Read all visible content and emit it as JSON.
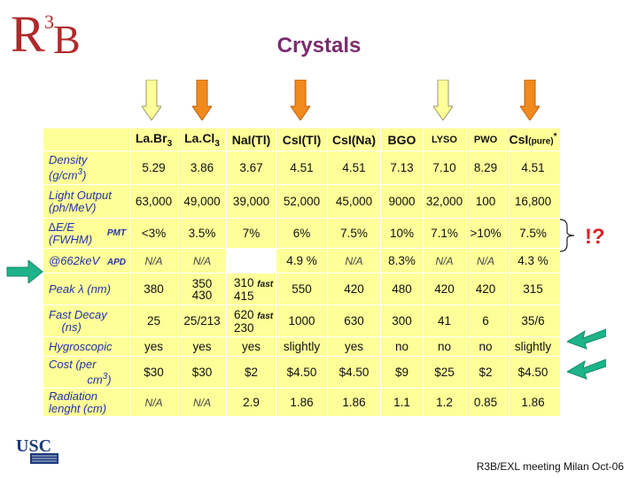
{
  "logo": {
    "r": "R",
    "three": "3",
    "b": "B"
  },
  "title": "Crystals",
  "headers": [
    "",
    "La.Br3",
    "La.Cl3",
    "NaI(Tl)",
    "CsI(Tl)",
    "CsI(Na)",
    "BGO",
    "LYSO",
    "PWO",
    "CsI (pure)"
  ],
  "header_parts": {
    "labr": "La.Br",
    "labr_sub": "3",
    "lacl": "La.Cl",
    "lacl_sub": "3",
    "csi_pure": "CsI",
    "csi_pure_note": "(pure)",
    "csi_star": "*"
  },
  "rows": {
    "density": {
      "label": "Density (g/cm3)",
      "label_l1": "Density",
      "label_l2": "(g/cm",
      "label_sup": "3",
      "label_end": ")",
      "values": [
        "5.29",
        "3.86",
        "3.67",
        "4.51",
        "4.51",
        "7.13",
        "7.10",
        "8.29",
        "4.51"
      ]
    },
    "light": {
      "label_l1": "Light Output",
      "label_l2": "(ph/MeV)",
      "values": [
        "63,000",
        "49,000",
        "39,000",
        "52,000",
        "45,000",
        "9000",
        "32,000",
        "100",
        "16,800"
      ]
    },
    "res_pmt": {
      "label_l1": "∆E/E",
      "label_l2": "(FWHM)",
      "tag": "PMT",
      "values": [
        "<3%",
        "3.5%",
        "7%",
        "6%",
        "7.5%",
        "10%",
        "7.1%",
        ">10%",
        "7.5%"
      ]
    },
    "res_apd": {
      "label": "@662keV",
      "tag": "APD",
      "values": [
        "N/A",
        "N/A",
        "",
        "4.9 %",
        "N/A",
        "8.3%",
        "N/A",
        "N/A",
        "4.3 %"
      ]
    },
    "peak": {
      "label": "Peak λ (nm)",
      "values": [
        "380",
        "350 430",
        "310 415",
        "550",
        "420",
        "480",
        "420",
        "420",
        "315"
      ],
      "lacl_l1": "350",
      "lacl_l2": "430",
      "nai_l1": "310",
      "nai_l2": "415",
      "fast": "fast"
    },
    "decay": {
      "label_l1": "Fast Decay",
      "label_l2": "(ns)",
      "values": [
        "25",
        "25/213",
        "620 230",
        "1000",
        "630",
        "300",
        "41",
        "6",
        "35/6"
      ],
      "nai_l1": "620",
      "nai_l2": "230",
      "fast": "fast"
    },
    "hygro": {
      "label": "Hygroscopic",
      "values": [
        "yes",
        "yes",
        "yes",
        "slightly",
        "yes",
        "no",
        "no",
        "no",
        "slightly"
      ]
    },
    "cost": {
      "label_l1": "Cost (per",
      "label_l2": "cm3)",
      "label_l2a": "cm",
      "label_sup": "3",
      "label_end": ")",
      "values": [
        "$30",
        "$30",
        "$2",
        "$4.50",
        "$4.50",
        "$9",
        "$25",
        "$2",
        "$4.50"
      ]
    },
    "radiation": {
      "label_l1": "Radiation",
      "label_l2": "lenght (cm)",
      "values": [
        "N/A",
        "N/A",
        "2.9",
        "1.86",
        "1.86",
        "1.1",
        "1.2",
        "0.85",
        "1.86"
      ]
    }
  },
  "annotation": "!?",
  "colors": {
    "title": "#7a2d6e",
    "logo": "#b0282a",
    "table_bg": "#ffff99",
    "label": "#2233aa",
    "arrow_orange": "#f08a1c",
    "arrow_yellow": "#ffff99",
    "arrow_green": "#1fb38a",
    "annotation": "#d9232a"
  },
  "usc_logo": "USC",
  "footer": "R3B/EXL meeting Milan Oct-06"
}
